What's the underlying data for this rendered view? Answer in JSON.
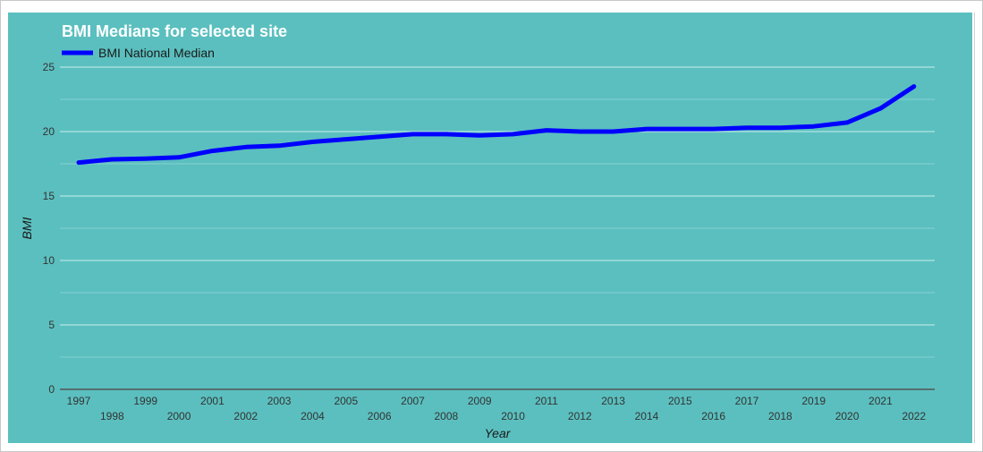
{
  "chart_data": {
    "type": "line",
    "title": "BMI Medians for selected site",
    "xlabel": "Year",
    "ylabel": "BMI",
    "ylim": [
      0,
      25
    ],
    "yticks": [
      0,
      5,
      10,
      15,
      20,
      25
    ],
    "grid": true,
    "legend": "top-left",
    "background_color": "#5bbfbf",
    "x": [
      "1997",
      "1998",
      "1999",
      "2000",
      "2001",
      "2002",
      "2003",
      "2004",
      "2005",
      "2006",
      "2007",
      "2008",
      "2009",
      "2010",
      "2011",
      "2012",
      "2013",
      "2014",
      "2015",
      "2016",
      "2017",
      "2018",
      "2019",
      "2020",
      "2021",
      "2022"
    ],
    "series": [
      {
        "name": "BMI National Median",
        "color": "#0000ff",
        "values": [
          17.6,
          17.85,
          17.9,
          18.0,
          18.5,
          18.8,
          18.9,
          19.2,
          19.4,
          19.6,
          19.8,
          19.8,
          19.7,
          19.8,
          20.1,
          20.0,
          20.0,
          20.2,
          20.2,
          20.2,
          20.3,
          20.3,
          20.4,
          20.7,
          21.8,
          23.5
        ]
      }
    ]
  }
}
